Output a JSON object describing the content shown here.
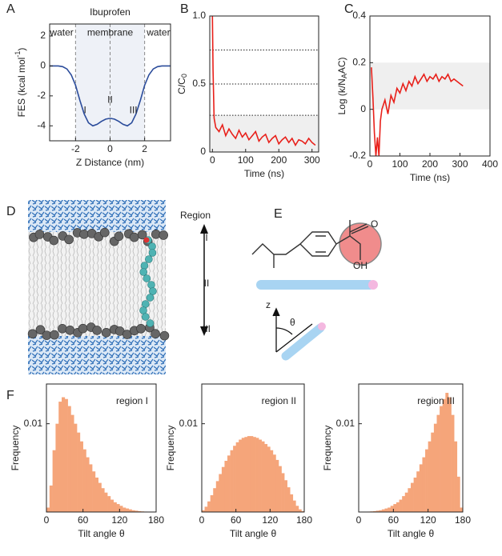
{
  "panel_labels": [
    "A",
    "B",
    "C",
    "D",
    "E",
    "F"
  ],
  "panel_d": {
    "region_title": "Region",
    "regions": [
      "I",
      "II",
      "III"
    ]
  },
  "panel_e": {
    "atoms": [
      "O",
      "OH"
    ],
    "axis": "z",
    "angle": "θ"
  },
  "chart_data": [
    {
      "type": "line",
      "title": "Ibuprofen",
      "xlabel": "Z Distance (nm)",
      "ylabel": [
        "FES (kcal mol",
        "-1",
        ")"
      ],
      "ylabel_script": "super",
      "x": [
        -3.5,
        -3.25,
        -3,
        -2.75,
        -2.5,
        -2.25,
        -2,
        -1.75,
        -1.5,
        -1.25,
        -1,
        -0.75,
        -0.5,
        -0.25,
        0,
        0.25,
        0.5,
        0.75,
        1,
        1.25,
        1.5,
        1.75,
        2,
        2.25,
        2.5,
        2.75,
        3,
        3.25,
        3.5
      ],
      "values": [
        0,
        0,
        0,
        -0.05,
        -0.2,
        -0.6,
        -1.3,
        -2.3,
        -3.2,
        -3.8,
        -4.0,
        -3.9,
        -3.7,
        -3.55,
        -3.5,
        -3.55,
        -3.7,
        -3.9,
        -4.0,
        -3.8,
        -3.2,
        -2.3,
        -1.3,
        -0.6,
        -0.2,
        -0.05,
        0,
        0,
        0
      ],
      "color": "#2b4c9b",
      "xlim": [
        -3.5,
        3.5
      ],
      "xticks": [
        -2,
        0,
        2
      ],
      "ylim": [
        -5,
        2.8
      ],
      "yticks": [
        2,
        0,
        -2,
        -4
      ],
      "vlines": [
        -2,
        0,
        2
      ],
      "band_x": [
        -2,
        2
      ],
      "band_color": "#eef1f7",
      "annotations": [
        "water",
        "membrane",
        "water",
        "I",
        "II",
        "III"
      ]
    },
    {
      "type": "line",
      "xlabel": "Time (ns)",
      "ylabel": [
        "C/C",
        "0",
        ""
      ],
      "ylabel_script": "sub",
      "x": [
        0,
        2,
        5,
        10,
        20,
        30,
        40,
        50,
        60,
        70,
        80,
        90,
        100,
        110,
        120,
        130,
        140,
        150,
        160,
        170,
        180,
        190,
        200,
        210,
        220,
        230,
        240,
        250,
        260,
        270,
        280,
        290,
        300,
        310
      ],
      "values": [
        1.0,
        0.6,
        0.25,
        0.18,
        0.15,
        0.2,
        0.12,
        0.17,
        0.13,
        0.1,
        0.16,
        0.11,
        0.14,
        0.09,
        0.12,
        0.15,
        0.08,
        0.11,
        0.13,
        0.07,
        0.1,
        0.12,
        0.06,
        0.09,
        0.11,
        0.07,
        0.1,
        0.05,
        0.09,
        0.08,
        0.06,
        0.1,
        0.07,
        0.05
      ],
      "color": "#e8201a",
      "xlim": [
        -8,
        320
      ],
      "xticks": [
        0,
        100,
        200,
        300
      ],
      "ylim": [
        0,
        1
      ],
      "yticks": [
        0,
        0.5,
        {
          "value": 1,
          "label": "1.0"
        }
      ],
      "hlines": [
        0.75,
        0.5,
        0.27
      ],
      "band_y": [
        0,
        0.27
      ],
      "band_color": "#efefef"
    },
    {
      "type": "line",
      "xlabel": "Time (ns)",
      "ylabel": [
        "Log (k/N",
        "A",
        "AC)"
      ],
      "ylabel_script": "sub",
      "x": [
        5,
        10,
        15,
        20,
        25,
        30,
        35,
        40,
        50,
        60,
        70,
        80,
        90,
        100,
        110,
        120,
        130,
        140,
        150,
        160,
        170,
        180,
        190,
        200,
        210,
        220,
        230,
        240,
        250,
        260,
        270,
        280,
        290,
        300,
        310
      ],
      "values": [
        0.18,
        0.05,
        -0.1,
        -0.2,
        -0.12,
        -0.2,
        -0.05,
        0.0,
        0.04,
        -0.02,
        0.06,
        0.03,
        0.09,
        0.07,
        0.11,
        0.08,
        0.12,
        0.1,
        0.14,
        0.11,
        0.13,
        0.15,
        0.12,
        0.14,
        0.13,
        0.15,
        0.12,
        0.14,
        0.13,
        0.15,
        0.12,
        0.13,
        0.12,
        0.11,
        0.1
      ],
      "color": "#e8201a",
      "xlim": [
        0,
        400
      ],
      "xticks": [
        0,
        100,
        200,
        300,
        400
      ],
      "ylim": [
        -0.2,
        0.4
      ],
      "yticks": [
        -0.2,
        0,
        0.2,
        0.4
      ],
      "band_y": [
        0,
        0.2
      ],
      "band_color": "#efefef"
    },
    {
      "type": "histogram",
      "xlabel": "Tilt angle θ",
      "ylabel": "Frequency",
      "annotations": [
        "region I"
      ],
      "color": "#f5a57a",
      "bins": [
        0,
        5,
        10,
        15,
        20,
        25,
        30,
        35,
        40,
        45,
        50,
        55,
        60,
        65,
        70,
        75,
        80,
        85,
        90,
        95,
        100,
        105,
        110,
        115,
        120,
        125,
        130,
        135,
        140,
        145,
        150,
        155,
        160,
        165,
        170,
        175,
        180
      ],
      "values": [
        0.0005,
        0.003,
        0.007,
        0.01,
        0.0125,
        0.013,
        0.0128,
        0.012,
        0.011,
        0.01,
        0.009,
        0.008,
        0.0071,
        0.0062,
        0.0054,
        0.0046,
        0.0039,
        0.0033,
        0.0027,
        0.0022,
        0.0018,
        0.0014,
        0.0011,
        0.0009,
        0.0007,
        0.0005,
        0.0004,
        0.0003,
        0.0002,
        0.00015,
        0.0001,
        7e-05,
        5e-05,
        3e-05,
        2e-05,
        1e-05
      ],
      "xlim": [
        0,
        180
      ],
      "xticks": [
        0,
        60,
        120,
        180
      ],
      "ylim": [
        0,
        0.0145
      ],
      "yticks": [
        0.01
      ]
    },
    {
      "type": "histogram",
      "xlabel": "Tilt angle θ",
      "ylabel": "Frequency",
      "annotations": [
        "region II"
      ],
      "color": "#f5a57a",
      "bins": [
        0,
        5,
        10,
        15,
        20,
        25,
        30,
        35,
        40,
        45,
        50,
        55,
        60,
        65,
        70,
        75,
        80,
        85,
        90,
        95,
        100,
        105,
        110,
        115,
        120,
        125,
        130,
        135,
        140,
        145,
        150,
        155,
        160,
        165,
        170,
        175,
        180
      ],
      "values": [
        0.0002,
        0.0006,
        0.0012,
        0.0019,
        0.0027,
        0.0035,
        0.0043,
        0.0051,
        0.0058,
        0.0064,
        0.007,
        0.0075,
        0.0079,
        0.0082,
        0.0084,
        0.0085,
        0.0086,
        0.0086,
        0.0085,
        0.0084,
        0.0082,
        0.008,
        0.0077,
        0.0074,
        0.007,
        0.0065,
        0.0059,
        0.0052,
        0.0044,
        0.0036,
        0.0028,
        0.002,
        0.0013,
        0.0007,
        0.0003,
        0.0001
      ],
      "xlim": [
        0,
        180
      ],
      "xticks": [
        0,
        60,
        120,
        180
      ],
      "ylim": [
        0,
        0.0145
      ],
      "yticks": [
        0.01
      ]
    },
    {
      "type": "histogram",
      "xlabel": "Tilt angle θ",
      "ylabel": "Frequency",
      "annotations": [
        "region III"
      ],
      "color": "#f5a57a",
      "bins": [
        0,
        5,
        10,
        15,
        20,
        25,
        30,
        35,
        40,
        45,
        50,
        55,
        60,
        65,
        70,
        75,
        80,
        85,
        90,
        95,
        100,
        105,
        110,
        115,
        120,
        125,
        130,
        135,
        140,
        145,
        150,
        155,
        160,
        165,
        170,
        175,
        180
      ],
      "values": [
        1e-05,
        2e-05,
        3e-05,
        5e-05,
        7e-05,
        0.0001,
        0.00015,
        0.0002,
        0.0003,
        0.0004,
        0.0005,
        0.0007,
        0.0009,
        0.0011,
        0.0014,
        0.0018,
        0.0022,
        0.0027,
        0.0033,
        0.0039,
        0.0046,
        0.0054,
        0.0062,
        0.0071,
        0.008,
        0.009,
        0.01,
        0.011,
        0.012,
        0.0128,
        0.0135,
        0.013,
        0.011,
        0.008,
        0.004,
        0.0005
      ],
      "xlim": [
        0,
        180
      ],
      "xticks": [
        0,
        60,
        120,
        180
      ],
      "ylim": [
        0,
        0.0145
      ],
      "yticks": [
        0.01
      ]
    }
  ]
}
